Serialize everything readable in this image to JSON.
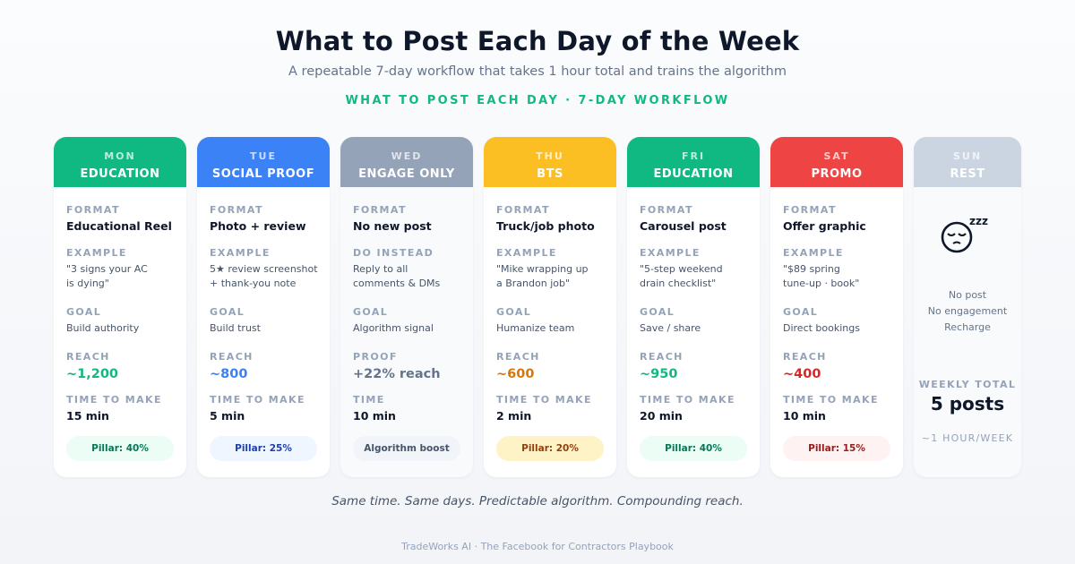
{
  "header": {
    "title": "What to Post Each Day of the Week",
    "subtitle": "A repeatable 7-day workflow that takes 1 hour total and trains the algorithm",
    "kicker": "WHAT TO POST EACH DAY · 7-DAY WORKFLOW"
  },
  "days": [
    {
      "day": "MON",
      "theme": "EDUCATION",
      "color": "#10b981",
      "format_label": "FORMAT",
      "format": "Educational Reel",
      "example_label": "EXAMPLE",
      "example": [
        "\"3 signs your AC",
        "is dying\""
      ],
      "goal_label": "GOAL",
      "goal": "Build authority",
      "reach_label": "REACH",
      "reach": "~1,200",
      "reach_color": "#10b981",
      "time_label": "TIME TO MAKE",
      "time": "15 min",
      "pill": "Pillar: 40%",
      "pill_bg": "#ecfdf5",
      "pill_fg": "#047857"
    },
    {
      "day": "TUE",
      "theme": "SOCIAL PROOF",
      "color": "#3b82f6",
      "format_label": "FORMAT",
      "format": "Photo + review",
      "example_label": "EXAMPLE",
      "example": [
        "5★ review screenshot",
        "+ thank-you note"
      ],
      "goal_label": "GOAL",
      "goal": "Build trust",
      "reach_label": "REACH",
      "reach": "~800",
      "reach_color": "#3b82f6",
      "time_label": "TIME TO MAKE",
      "time": "5 min",
      "pill": "Pillar: 25%",
      "pill_bg": "#eff6ff",
      "pill_fg": "#1e40af"
    },
    {
      "day": "WED",
      "theme": "ENGAGE ONLY",
      "color": "#94a3b8",
      "format_label": "FORMAT",
      "format": "No new post",
      "example_label": "DO INSTEAD",
      "example": [
        "Reply to all",
        "comments & DMs"
      ],
      "goal_label": "GOAL",
      "goal": "Algorithm signal",
      "reach_label": "PROOF",
      "reach": "+22% reach",
      "reach_color": "#64748b",
      "time_label": "TIME",
      "time": "10 min",
      "pill": "Algorithm boost",
      "pill_bg": "#f1f5f9",
      "pill_fg": "#475569"
    },
    {
      "day": "THU",
      "theme": "BTS",
      "color": "#fbbf24",
      "format_label": "FORMAT",
      "format": "Truck/job photo",
      "example_label": "EXAMPLE",
      "example": [
        "\"Mike wrapping up",
        "a Brandon job\""
      ],
      "goal_label": "GOAL",
      "goal": "Humanize team",
      "reach_label": "REACH",
      "reach": "~600",
      "reach_color": "#d97706",
      "time_label": "TIME TO MAKE",
      "time": "2 min",
      "pill": "Pillar: 20%",
      "pill_bg": "#fef3c7",
      "pill_fg": "#92400e"
    },
    {
      "day": "FRI",
      "theme": "EDUCATION",
      "color": "#10b981",
      "format_label": "FORMAT",
      "format": "Carousel post",
      "example_label": "EXAMPLE",
      "example": [
        "\"5-step weekend",
        "drain checklist\""
      ],
      "goal_label": "GOAL",
      "goal": "Save / share",
      "reach_label": "REACH",
      "reach": "~950",
      "reach_color": "#10b981",
      "time_label": "TIME TO MAKE",
      "time": "20 min",
      "pill": "Pillar: 40%",
      "pill_bg": "#ecfdf5",
      "pill_fg": "#047857"
    },
    {
      "day": "SAT",
      "theme": "PROMO",
      "color": "#ef4444",
      "format_label": "FORMAT",
      "format": "Offer graphic",
      "example_label": "EXAMPLE",
      "example": [
        "\"$89 spring",
        "tune-up · book\""
      ],
      "goal_label": "GOAL",
      "goal": "Direct bookings",
      "reach_label": "REACH",
      "reach": "~400",
      "reach_color": "#dc2626",
      "time_label": "TIME TO MAKE",
      "time": "10 min",
      "pill": "Pillar: 15%",
      "pill_bg": "#fef2f2",
      "pill_fg": "#991b1b"
    }
  ],
  "sunday": {
    "day": "SUN",
    "theme": "REST",
    "color": "#cbd5e1",
    "icon": "sleeping-face-icon",
    "lines": [
      "No post",
      "No engagement",
      "Recharge"
    ],
    "total_label": "WEEKLY TOTAL",
    "total": "5 posts",
    "hour": "~1 HOUR/WEEK"
  },
  "tagline": "Same time. Same days. Predictable algorithm. Compounding reach.",
  "footer": "TradeWorks AI · The Facebook for Contractors Playbook"
}
